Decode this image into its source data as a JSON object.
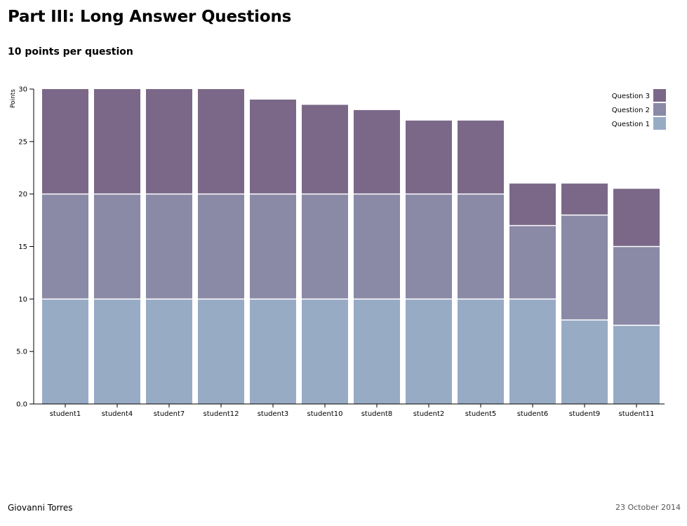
{
  "header": {
    "title": "Part III: Long Answer Questions",
    "subtitle": "10 points per question"
  },
  "footer": {
    "author": "Giovanni Torres",
    "date": "23 October 2014"
  },
  "colors": {
    "question1": "#98abc5",
    "question2": "#8a89a6",
    "question3": "#7b6888"
  },
  "chart_data": {
    "type": "bar",
    "stacked": true,
    "title": "",
    "xlabel": "",
    "ylabel": "Points",
    "ylim": [
      0,
      30
    ],
    "yticks": [
      0,
      5,
      10,
      15,
      20,
      25,
      30
    ],
    "ytick_labels": [
      "0.0",
      "5.0",
      "10",
      "15",
      "20",
      "25",
      "30"
    ],
    "grid": false,
    "legend_position": "top-right",
    "categories": [
      "student1",
      "student4",
      "student7",
      "student12",
      "student3",
      "student10",
      "student8",
      "student2",
      "student5",
      "student6",
      "student9",
      "student11"
    ],
    "series": [
      {
        "name": "Question 1",
        "values": [
          10,
          10,
          10,
          10,
          10,
          10,
          10,
          10,
          10,
          10,
          8,
          7.5
        ]
      },
      {
        "name": "Question 2",
        "values": [
          10,
          10,
          10,
          10,
          10,
          10,
          10,
          10,
          10,
          7,
          10,
          7.5
        ]
      },
      {
        "name": "Question 3",
        "values": [
          10,
          10,
          10,
          10,
          9,
          8.5,
          8,
          7,
          7,
          4,
          3,
          5.5
        ]
      }
    ],
    "legend_order": [
      "Question 3",
      "Question 2",
      "Question 1"
    ]
  }
}
